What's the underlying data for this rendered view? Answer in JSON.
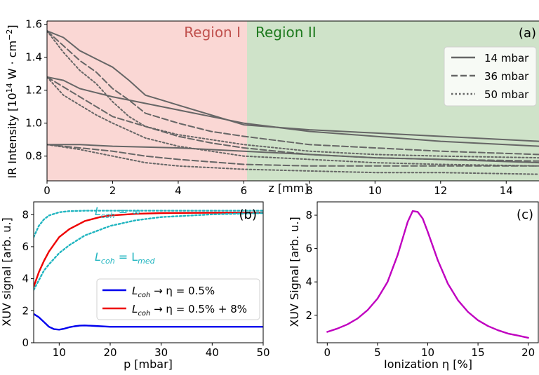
{
  "chart_data": [
    {
      "panel": "(a)",
      "type": "line",
      "xlabel": "z [mm]",
      "ylabel_parts": [
        "IR Intensity [10",
        "14",
        " W · cm",
        "−2",
        "]"
      ],
      "xlim": [
        0,
        15
      ],
      "ylim": [
        0.65,
        1.62
      ],
      "xticks": [
        "0",
        "2",
        "4",
        "6",
        "8",
        "10",
        "12",
        "14"
      ],
      "yticks": [
        "0.8",
        "1.0",
        "1.2",
        "1.4",
        "1.6"
      ],
      "regions": [
        {
          "label": "Region I",
          "from": 0,
          "to": 6,
          "fill": "#fad7d4",
          "color": "#c0504d"
        },
        {
          "label": "Region II",
          "from": 6,
          "to": 15,
          "fill": "#cfe3c9",
          "color": "#1e7a1e"
        }
      ],
      "line_color": "#666666",
      "legend": {
        "position": "top-right",
        "entries": [
          {
            "label": "14 mbar",
            "dash": "solid"
          },
          {
            "label": "36 mbar",
            "dash": "dashed"
          },
          {
            "label": "50 mbar",
            "dash": "dotted"
          }
        ]
      },
      "series": [
        {
          "name": "14 mbar",
          "dash": "solid",
          "x": [
            0,
            0.5,
            1,
            1.5,
            2,
            2.5,
            3,
            3.5,
            4,
            5,
            6,
            8,
            10,
            12,
            15
          ],
          "y": [
            1.56,
            1.52,
            1.44,
            1.39,
            1.34,
            1.26,
            1.17,
            1.14,
            1.11,
            1.05,
            0.99,
            0.96,
            0.94,
            0.92,
            0.89
          ]
        },
        {
          "name": "14 mbar",
          "dash": "solid",
          "x": [
            0,
            0.5,
            1,
            2,
            3,
            4,
            5,
            6,
            8,
            10,
            12,
            15
          ],
          "y": [
            1.28,
            1.26,
            1.21,
            1.16,
            1.12,
            1.08,
            1.04,
            1.0,
            0.95,
            0.92,
            0.89,
            0.86
          ]
        },
        {
          "name": "14 mbar",
          "dash": "solid",
          "x": [
            0,
            1,
            2,
            4,
            6,
            8,
            10,
            12,
            15
          ],
          "y": [
            0.87,
            0.87,
            0.86,
            0.85,
            0.83,
            0.81,
            0.79,
            0.78,
            0.76
          ]
        },
        {
          "name": "36 mbar",
          "dash": "dashed",
          "x": [
            0,
            0.5,
            1,
            1.5,
            2,
            2.5,
            3,
            4,
            5,
            6,
            8,
            10,
            12,
            15
          ],
          "y": [
            1.56,
            1.47,
            1.38,
            1.31,
            1.21,
            1.14,
            1.06,
            1.0,
            0.95,
            0.92,
            0.87,
            0.85,
            0.83,
            0.81
          ]
        },
        {
          "name": "36 mbar",
          "dash": "dashed",
          "x": [
            0,
            0.5,
            1,
            1.5,
            2,
            3,
            4,
            5,
            6,
            8,
            10,
            12,
            15
          ],
          "y": [
            1.28,
            1.22,
            1.16,
            1.1,
            1.04,
            0.98,
            0.92,
            0.88,
            0.85,
            0.81,
            0.79,
            0.78,
            0.77
          ]
        },
        {
          "name": "36 mbar",
          "dash": "dashed",
          "x": [
            0,
            1,
            2,
            3,
            4,
            6,
            8,
            10,
            12,
            15
          ],
          "y": [
            0.87,
            0.85,
            0.83,
            0.8,
            0.78,
            0.75,
            0.74,
            0.74,
            0.74,
            0.74
          ]
        },
        {
          "name": "50 mbar",
          "dash": "dotted",
          "x": [
            0,
            0.5,
            1,
            1.5,
            2,
            2.5,
            3,
            4,
            5,
            6,
            8,
            10,
            12,
            15
          ],
          "y": [
            1.56,
            1.43,
            1.32,
            1.24,
            1.13,
            1.04,
            0.98,
            0.93,
            0.9,
            0.87,
            0.83,
            0.81,
            0.8,
            0.79
          ]
        },
        {
          "name": "50 mbar",
          "dash": "dotted",
          "x": [
            0,
            0.5,
            1,
            1.5,
            2,
            3,
            4,
            5,
            6,
            8,
            10,
            12,
            15
          ],
          "y": [
            1.28,
            1.17,
            1.11,
            1.05,
            1.0,
            0.91,
            0.86,
            0.83,
            0.8,
            0.78,
            0.76,
            0.75,
            0.74
          ]
        },
        {
          "name": "50 mbar",
          "dash": "dotted",
          "x": [
            0,
            1,
            2,
            3,
            4,
            6,
            8,
            10,
            12,
            15
          ],
          "y": [
            0.87,
            0.84,
            0.8,
            0.76,
            0.74,
            0.72,
            0.71,
            0.7,
            0.7,
            0.69
          ]
        }
      ]
    },
    {
      "panel": "(b)",
      "type": "line",
      "xlabel": "p [mbar]",
      "ylabel": "XUV signal [arb. u.]",
      "xlim": [
        5,
        50
      ],
      "ylim": [
        0,
        8.8
      ],
      "xticks": [
        10,
        20,
        30,
        40,
        50
      ],
      "yticks": [
        0,
        2,
        4,
        6,
        8
      ],
      "legend": {
        "position": "bottom-center",
        "entries": [
          {
            "label_parts": [
              "L",
              "coh",
              " → η = 0.5%"
            ],
            "color": "#0000ee"
          },
          {
            "label_parts": [
              "L",
              "coh",
              " → η = 0.5% + 8%"
            ],
            "color": "#ee0000"
          }
        ]
      },
      "annotations": [
        {
          "text_parts": [
            "L",
            "coh",
            " = ∞"
          ],
          "color": "#20b5c0"
        },
        {
          "text_parts": [
            "L",
            "coh",
            " = L",
            "med"
          ],
          "color": "#20b5c0"
        }
      ],
      "series": [
        {
          "id": "blue",
          "color": "#0000ee",
          "dash": "solid",
          "x": [
            5,
            6,
            7,
            8,
            9,
            10,
            11,
            12,
            13,
            14,
            15,
            17,
            20,
            25,
            30,
            40,
            50
          ],
          "y": [
            1.8,
            1.6,
            1.3,
            1.0,
            0.85,
            0.82,
            0.88,
            0.97,
            1.03,
            1.07,
            1.08,
            1.05,
            1.0,
            1.0,
            1.0,
            1.0,
            1.0
          ]
        },
        {
          "id": "red",
          "color": "#ee0000",
          "dash": "solid",
          "x": [
            5,
            6,
            7,
            8,
            10,
            12,
            15,
            18,
            20,
            25,
            30,
            40,
            50
          ],
          "y": [
            3.5,
            4.4,
            5.1,
            5.7,
            6.6,
            7.1,
            7.6,
            7.85,
            7.95,
            8.05,
            8.1,
            8.12,
            8.12
          ]
        },
        {
          "id": "cyan-upper",
          "color": "#20b5c0",
          "dash": "dotted",
          "x": [
            5,
            6,
            7,
            8,
            10,
            12,
            15,
            20,
            30,
            50
          ],
          "y": [
            6.6,
            7.3,
            7.7,
            7.95,
            8.15,
            8.22,
            8.25,
            8.25,
            8.25,
            8.25
          ]
        },
        {
          "id": "cyan-lower",
          "color": "#20b5c0",
          "dash": "dotted",
          "x": [
            5,
            6,
            7,
            8,
            10,
            12,
            15,
            20,
            25,
            30,
            40,
            50
          ],
          "y": [
            3.3,
            3.9,
            4.5,
            4.9,
            5.6,
            6.1,
            6.7,
            7.3,
            7.65,
            7.85,
            8.02,
            8.1
          ]
        }
      ]
    },
    {
      "panel": "(c)",
      "type": "line",
      "xlabel": "Ionization η [%]",
      "ylabel": "XUV Signal [arb. u.]",
      "xlim": [
        -1,
        21
      ],
      "ylim": [
        0.35,
        8.8
      ],
      "xticks": [
        0,
        5,
        10,
        15,
        20
      ],
      "yticks": [
        2,
        4,
        6,
        8
      ],
      "series": [
        {
          "id": "magenta",
          "color": "#c000c0",
          "dash": "solid",
          "x": [
            0,
            1,
            2,
            3,
            4,
            5,
            6,
            7,
            7.5,
            8,
            8.5,
            9,
            9.5,
            10,
            11,
            12,
            13,
            14,
            15,
            16,
            17,
            18,
            19,
            20
          ],
          "y": [
            1.0,
            1.2,
            1.45,
            1.8,
            2.3,
            3.0,
            4.0,
            5.6,
            6.6,
            7.6,
            8.25,
            8.2,
            7.8,
            7.0,
            5.3,
            3.9,
            2.9,
            2.2,
            1.7,
            1.35,
            1.1,
            0.9,
            0.78,
            0.65
          ]
        }
      ]
    }
  ]
}
